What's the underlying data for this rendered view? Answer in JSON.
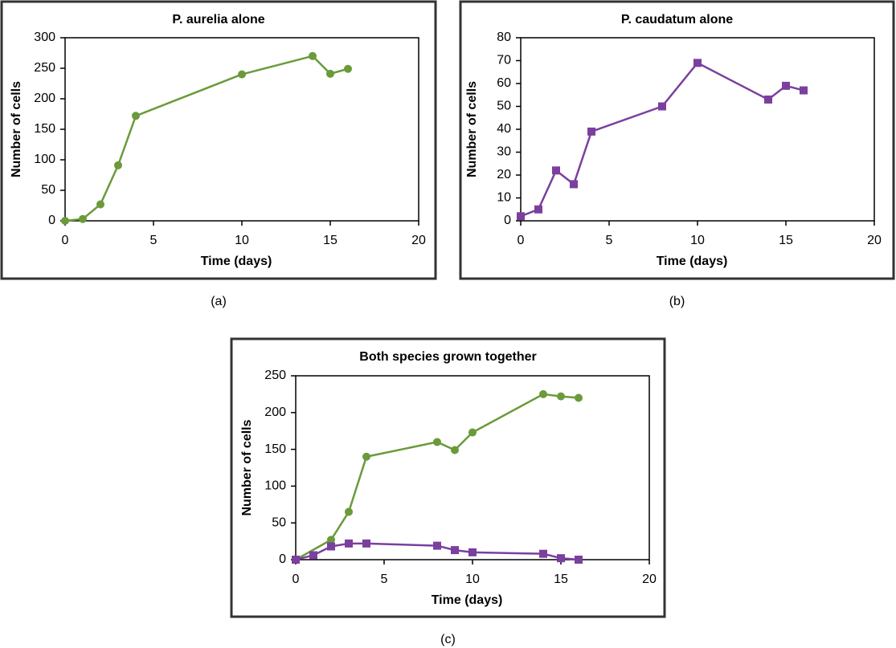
{
  "chart_data": [
    {
      "type": "line",
      "title": "P. aurelia alone",
      "x_label": "Time (days)",
      "y_label": "Number of cells",
      "caption": "(a)",
      "xlim": [
        0,
        20
      ],
      "xticks": [
        0,
        5,
        10,
        15,
        20
      ],
      "ylim": [
        0,
        300
      ],
      "yticks": [
        0,
        50,
        100,
        150,
        200,
        250,
        300
      ],
      "series": [
        {
          "color": "#6a9a3a",
          "marker": "circle",
          "x": [
            0,
            1,
            2,
            3,
            4,
            10,
            14,
            15,
            16
          ],
          "values": [
            0,
            3,
            27,
            91,
            172,
            240,
            270,
            241,
            249
          ]
        }
      ]
    },
    {
      "type": "line",
      "title": "P. caudatum alone",
      "x_label": "Time (days)",
      "y_label": "Number of cells",
      "caption": "(b)",
      "xlim": [
        0,
        20
      ],
      "xticks": [
        0,
        5,
        10,
        15,
        20
      ],
      "ylim": [
        0,
        80
      ],
      "yticks": [
        0,
        10,
        20,
        30,
        40,
        50,
        60,
        70,
        80
      ],
      "series": [
        {
          "color": "#7b3f9e",
          "marker": "square",
          "x": [
            0,
            1,
            2,
            3,
            4,
            8,
            10,
            14,
            15,
            16
          ],
          "values": [
            2,
            5,
            22,
            16,
            39,
            50,
            69,
            53,
            59,
            57
          ]
        }
      ]
    },
    {
      "type": "line",
      "title": "Both species grown together",
      "x_label": "Time (days)",
      "y_label": "Number of cells",
      "caption": "(c)",
      "xlim": [
        0,
        20
      ],
      "xticks": [
        0,
        5,
        10,
        15,
        20
      ],
      "ylim": [
        0,
        250
      ],
      "yticks": [
        0,
        50,
        100,
        150,
        200,
        250
      ],
      "series": [
        {
          "color": "#6a9a3a",
          "marker": "circle",
          "x": [
            0,
            2,
            3,
            4,
            8,
            9,
            10,
            14,
            15,
            16
          ],
          "values": [
            0,
            27,
            65,
            140,
            160,
            149,
            173,
            225,
            222,
            220
          ]
        },
        {
          "color": "#7b3f9e",
          "marker": "square",
          "x": [
            0,
            1,
            2,
            3,
            4,
            8,
            9,
            10,
            14,
            15,
            16
          ],
          "values": [
            0,
            6,
            18,
            22,
            22,
            19,
            13,
            10,
            8,
            2,
            0
          ]
        }
      ]
    }
  ]
}
